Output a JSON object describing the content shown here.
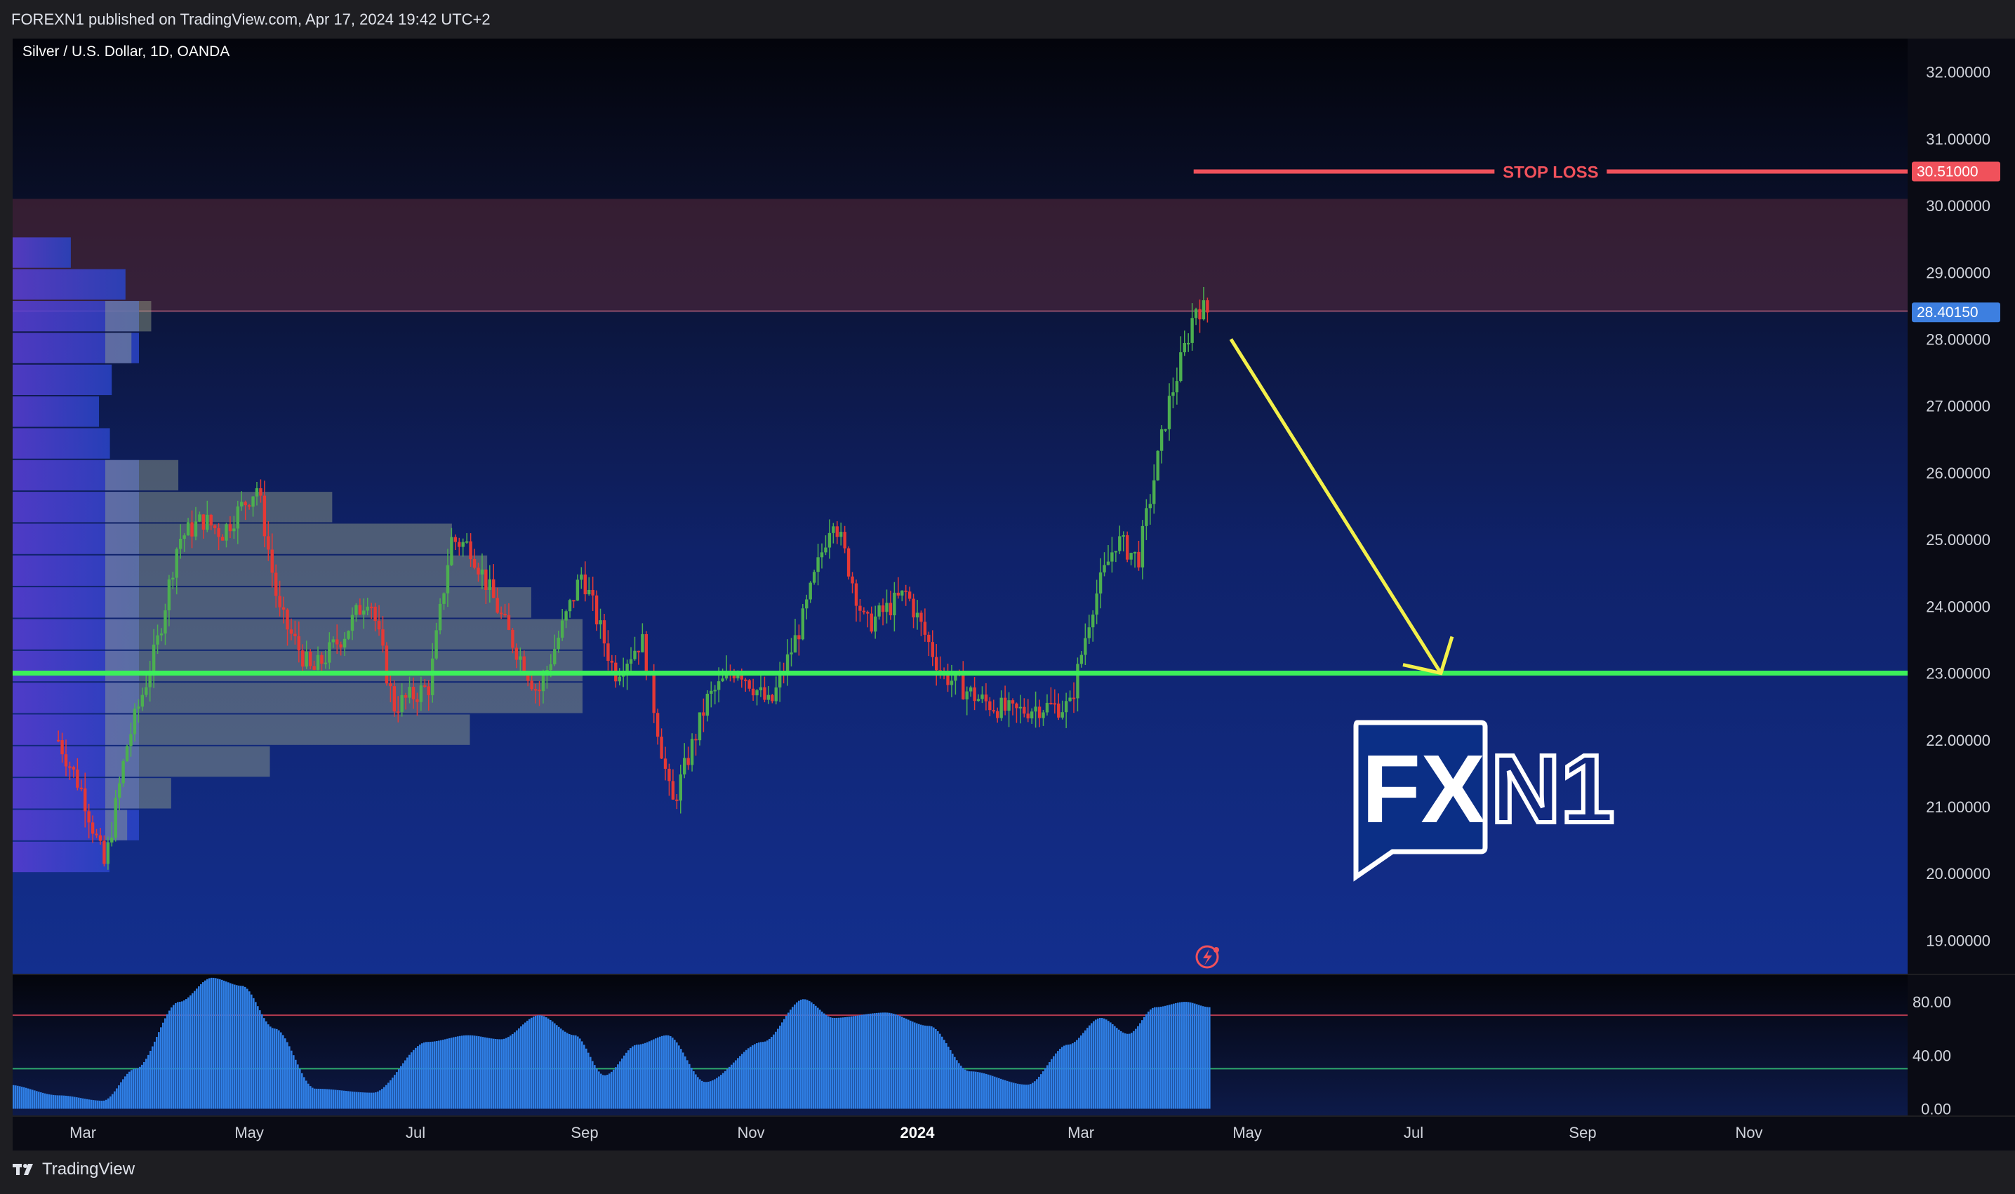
{
  "header": {
    "published": "FOREXN1 published on TradingView.com, Apr 17, 2024 19:42 UTC+2"
  },
  "chart_title": "Silver / U.S. Dollar, 1D, OANDA",
  "footer": {
    "brand": "TradingView"
  },
  "watermark": {
    "fx": "FX",
    "n1": "N1"
  },
  "annotations": {
    "stop_loss_label": "STOP LOSS",
    "stop_loss_price": "30.51000",
    "current_price": "28.40150"
  },
  "colors": {
    "stop_loss": "#f0515b",
    "support": "#3cf05a",
    "arrow": "#f3f04a",
    "current_price_bg": "#3d7fe0",
    "candle_up": "#4caf50",
    "candle_down": "#e53935",
    "rsi_fill": "#2f7fe6"
  },
  "chart_data": [
    {
      "type": "candlestick",
      "price_axis_labels": [
        "32.00000",
        "31.00000",
        "30.00000",
        "29.00000",
        "28.00000",
        "27.00000",
        "26.00000",
        "25.00000",
        "24.00000",
        "23.00000",
        "22.00000",
        "21.00000",
        "20.00000",
        "19.00000"
      ],
      "ylim": [
        18.5,
        32.5
      ],
      "time_axis_labels": [
        "Mar",
        "May",
        "Jul",
        "Sep",
        "Nov",
        "2024",
        "Mar",
        "May",
        "Jul",
        "Sep",
        "Nov"
      ],
      "resistance_zone": [
        28.42,
        30.1
      ],
      "stop_loss_level": 30.51,
      "support_level": 23.0,
      "current_price": 28.4015,
      "close_path": [
        {
          "x": "2023-02-20",
          "y": 22.0
        },
        {
          "x": "2023-03-01",
          "y": 21.2
        },
        {
          "x": "2023-03-09",
          "y": 20.1
        },
        {
          "x": "2023-03-17",
          "y": 21.9
        },
        {
          "x": "2023-03-28",
          "y": 23.4
        },
        {
          "x": "2023-04-05",
          "y": 25.0
        },
        {
          "x": "2023-04-14",
          "y": 25.3
        },
        {
          "x": "2023-04-21",
          "y": 25.1
        },
        {
          "x": "2023-05-04",
          "y": 25.8
        },
        {
          "x": "2023-05-12",
          "y": 23.9
        },
        {
          "x": "2023-05-24",
          "y": 23.0
        },
        {
          "x": "2023-06-05",
          "y": 23.6
        },
        {
          "x": "2023-06-14",
          "y": 24.2
        },
        {
          "x": "2023-06-23",
          "y": 22.5
        },
        {
          "x": "2023-07-06",
          "y": 22.8
        },
        {
          "x": "2023-07-14",
          "y": 25.0
        },
        {
          "x": "2023-07-21",
          "y": 24.9
        },
        {
          "x": "2023-08-04",
          "y": 23.6
        },
        {
          "x": "2023-08-15",
          "y": 22.7
        },
        {
          "x": "2023-08-31",
          "y": 24.5
        },
        {
          "x": "2023-09-12",
          "y": 23.0
        },
        {
          "x": "2023-09-22",
          "y": 23.5
        },
        {
          "x": "2023-10-03",
          "y": 21.0
        },
        {
          "x": "2023-10-16",
          "y": 22.6
        },
        {
          "x": "2023-10-27",
          "y": 23.1
        },
        {
          "x": "2023-11-08",
          "y": 22.5
        },
        {
          "x": "2023-11-20",
          "y": 23.8
        },
        {
          "x": "2023-12-01",
          "y": 25.4
        },
        {
          "x": "2023-12-13",
          "y": 23.7
        },
        {
          "x": "2023-12-28",
          "y": 24.2
        },
        {
          "x": "2024-01-10",
          "y": 23.0
        },
        {
          "x": "2024-01-24",
          "y": 22.6
        },
        {
          "x": "2024-02-05",
          "y": 22.4
        },
        {
          "x": "2024-02-14",
          "y": 22.5
        },
        {
          "x": "2024-02-26",
          "y": 22.5
        },
        {
          "x": "2024-03-05",
          "y": 24.0
        },
        {
          "x": "2024-03-14",
          "y": 25.0
        },
        {
          "x": "2024-03-22",
          "y": 24.7
        },
        {
          "x": "2024-04-02",
          "y": 27.0
        },
        {
          "x": "2024-04-09",
          "y": 28.0
        },
        {
          "x": "2024-04-12",
          "y": 28.5
        },
        {
          "x": "2024-04-17",
          "y": 28.4
        }
      ],
      "projection_arrow": {
        "from": {
          "x": "2024-04-25",
          "y": 28.0
        },
        "to": {
          "x": "2024-07-11",
          "y": 23.0
        }
      }
    },
    {
      "type": "area",
      "panel": "oscillator",
      "axis_labels": [
        "80.00",
        "40.00",
        "0.00"
      ],
      "ylim": [
        -5,
        100
      ],
      "upper_band": 70,
      "lower_band": 30,
      "points": [
        {
          "x": "2023-02-01",
          "y": 18
        },
        {
          "x": "2023-02-20",
          "y": 10
        },
        {
          "x": "2023-03-08",
          "y": 6
        },
        {
          "x": "2023-03-20",
          "y": 30
        },
        {
          "x": "2023-04-05",
          "y": 80
        },
        {
          "x": "2023-04-17",
          "y": 98
        },
        {
          "x": "2023-04-28",
          "y": 92
        },
        {
          "x": "2023-05-10",
          "y": 60
        },
        {
          "x": "2023-05-25",
          "y": 15
        },
        {
          "x": "2023-06-15",
          "y": 12
        },
        {
          "x": "2023-07-05",
          "y": 50
        },
        {
          "x": "2023-07-20",
          "y": 55
        },
        {
          "x": "2023-08-01",
          "y": 52
        },
        {
          "x": "2023-08-15",
          "y": 70
        },
        {
          "x": "2023-08-28",
          "y": 55
        },
        {
          "x": "2023-09-08",
          "y": 25
        },
        {
          "x": "2023-09-20",
          "y": 48
        },
        {
          "x": "2023-10-01",
          "y": 55
        },
        {
          "x": "2023-10-15",
          "y": 20
        },
        {
          "x": "2023-11-05",
          "y": 50
        },
        {
          "x": "2023-11-20",
          "y": 82
        },
        {
          "x": "2023-12-01",
          "y": 68
        },
        {
          "x": "2023-12-20",
          "y": 72
        },
        {
          "x": "2024-01-05",
          "y": 62
        },
        {
          "x": "2024-01-20",
          "y": 28
        },
        {
          "x": "2024-02-10",
          "y": 18
        },
        {
          "x": "2024-02-25",
          "y": 48
        },
        {
          "x": "2024-03-08",
          "y": 68
        },
        {
          "x": "2024-03-18",
          "y": 56
        },
        {
          "x": "2024-03-28",
          "y": 76
        },
        {
          "x": "2024-04-08",
          "y": 80
        },
        {
          "x": "2024-04-17",
          "y": 76
        }
      ]
    }
  ]
}
